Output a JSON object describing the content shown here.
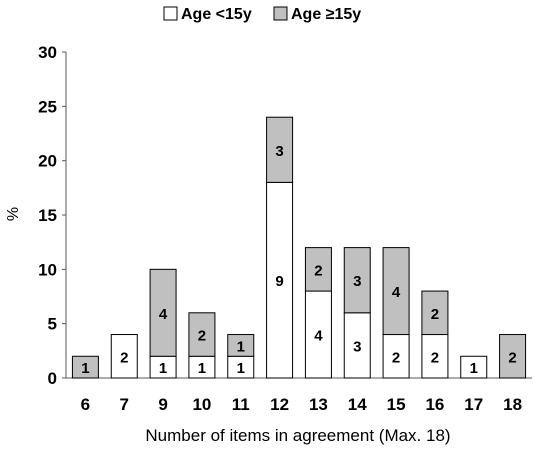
{
  "chart_data": {
    "type": "bar",
    "stacked": true,
    "xlabel": "Number of items in agreement (Max. 18)",
    "ylabel": "%",
    "ylim": [
      0,
      30
    ],
    "yticks": [
      0,
      5,
      10,
      15,
      20,
      25,
      30
    ],
    "grid": false,
    "legend_position": "top-center",
    "categories": [
      "6",
      "7",
      "9",
      "10",
      "11",
      "12",
      "13",
      "14",
      "15",
      "16",
      "17",
      "18"
    ],
    "series": [
      {
        "name": "Age <15y",
        "color": "#ffffff",
        "values": [
          0,
          4,
          2,
          2,
          2,
          18,
          8,
          6,
          4,
          4,
          2,
          0
        ],
        "labels": [
          "",
          "2",
          "1",
          "1",
          "1",
          "9",
          "4",
          "3",
          "2",
          "2",
          "1",
          ""
        ]
      },
      {
        "name": "Age ≥15y",
        "color": "#c0c0c0",
        "values": [
          2,
          0,
          8,
          4,
          2,
          6,
          4,
          6,
          8,
          4,
          0,
          4
        ],
        "labels": [
          "1",
          "",
          "4",
          "2",
          "1",
          "3",
          "2",
          "3",
          "4",
          "2",
          "",
          "2"
        ]
      }
    ]
  }
}
